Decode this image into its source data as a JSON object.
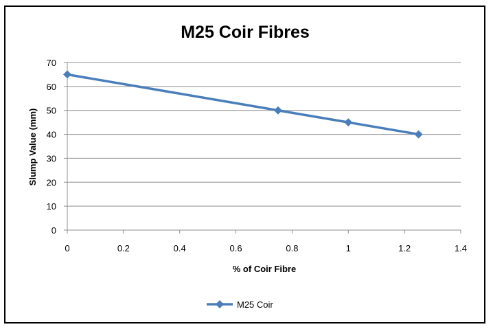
{
  "chart_data": {
    "type": "line",
    "title": "M25 Coir Fibres",
    "xlabel": "% of Coir Fibre",
    "ylabel": "Slump Value (mm)",
    "xlim": [
      0,
      1.4
    ],
    "ylim": [
      0,
      70
    ],
    "x_ticks": [
      "0",
      "0.2",
      "0.4",
      "0.6",
      "0.8",
      "1",
      "1.2",
      "1.4"
    ],
    "y_ticks": [
      "0",
      "10",
      "20",
      "30",
      "40",
      "50",
      "60",
      "70"
    ],
    "grid": "horizontal",
    "legend_position": "bottom",
    "series": [
      {
        "name": "M25 Coir",
        "color": "#4a7ebb",
        "marker": "diamond",
        "x": [
          0,
          0.75,
          1,
          1.25
        ],
        "y": [
          65,
          50,
          45,
          40
        ]
      }
    ]
  }
}
